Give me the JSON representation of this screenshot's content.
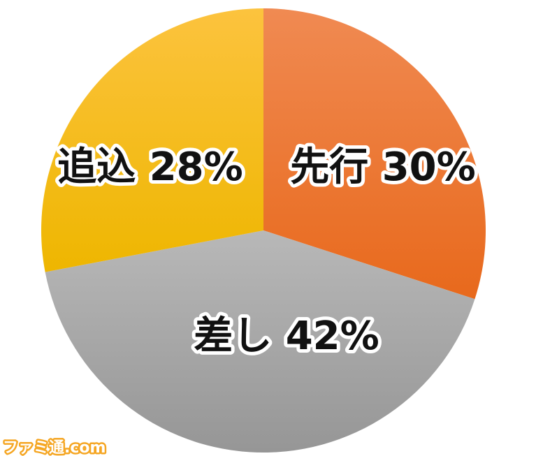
{
  "chart_data": {
    "type": "pie",
    "start": "top",
    "direction": "clockwise",
    "slices": [
      {
        "label": "先行",
        "value": 30,
        "text": "先行 30%",
        "color": "#ee7a2d"
      },
      {
        "label": "差し",
        "value": 42,
        "text": "差し 42%",
        "color": "#aaaaaa"
      },
      {
        "label": "追込",
        "value": 28,
        "text": "追込 28%",
        "color": "#f7bd0c"
      }
    ]
  },
  "watermark": "ファミ通.com"
}
